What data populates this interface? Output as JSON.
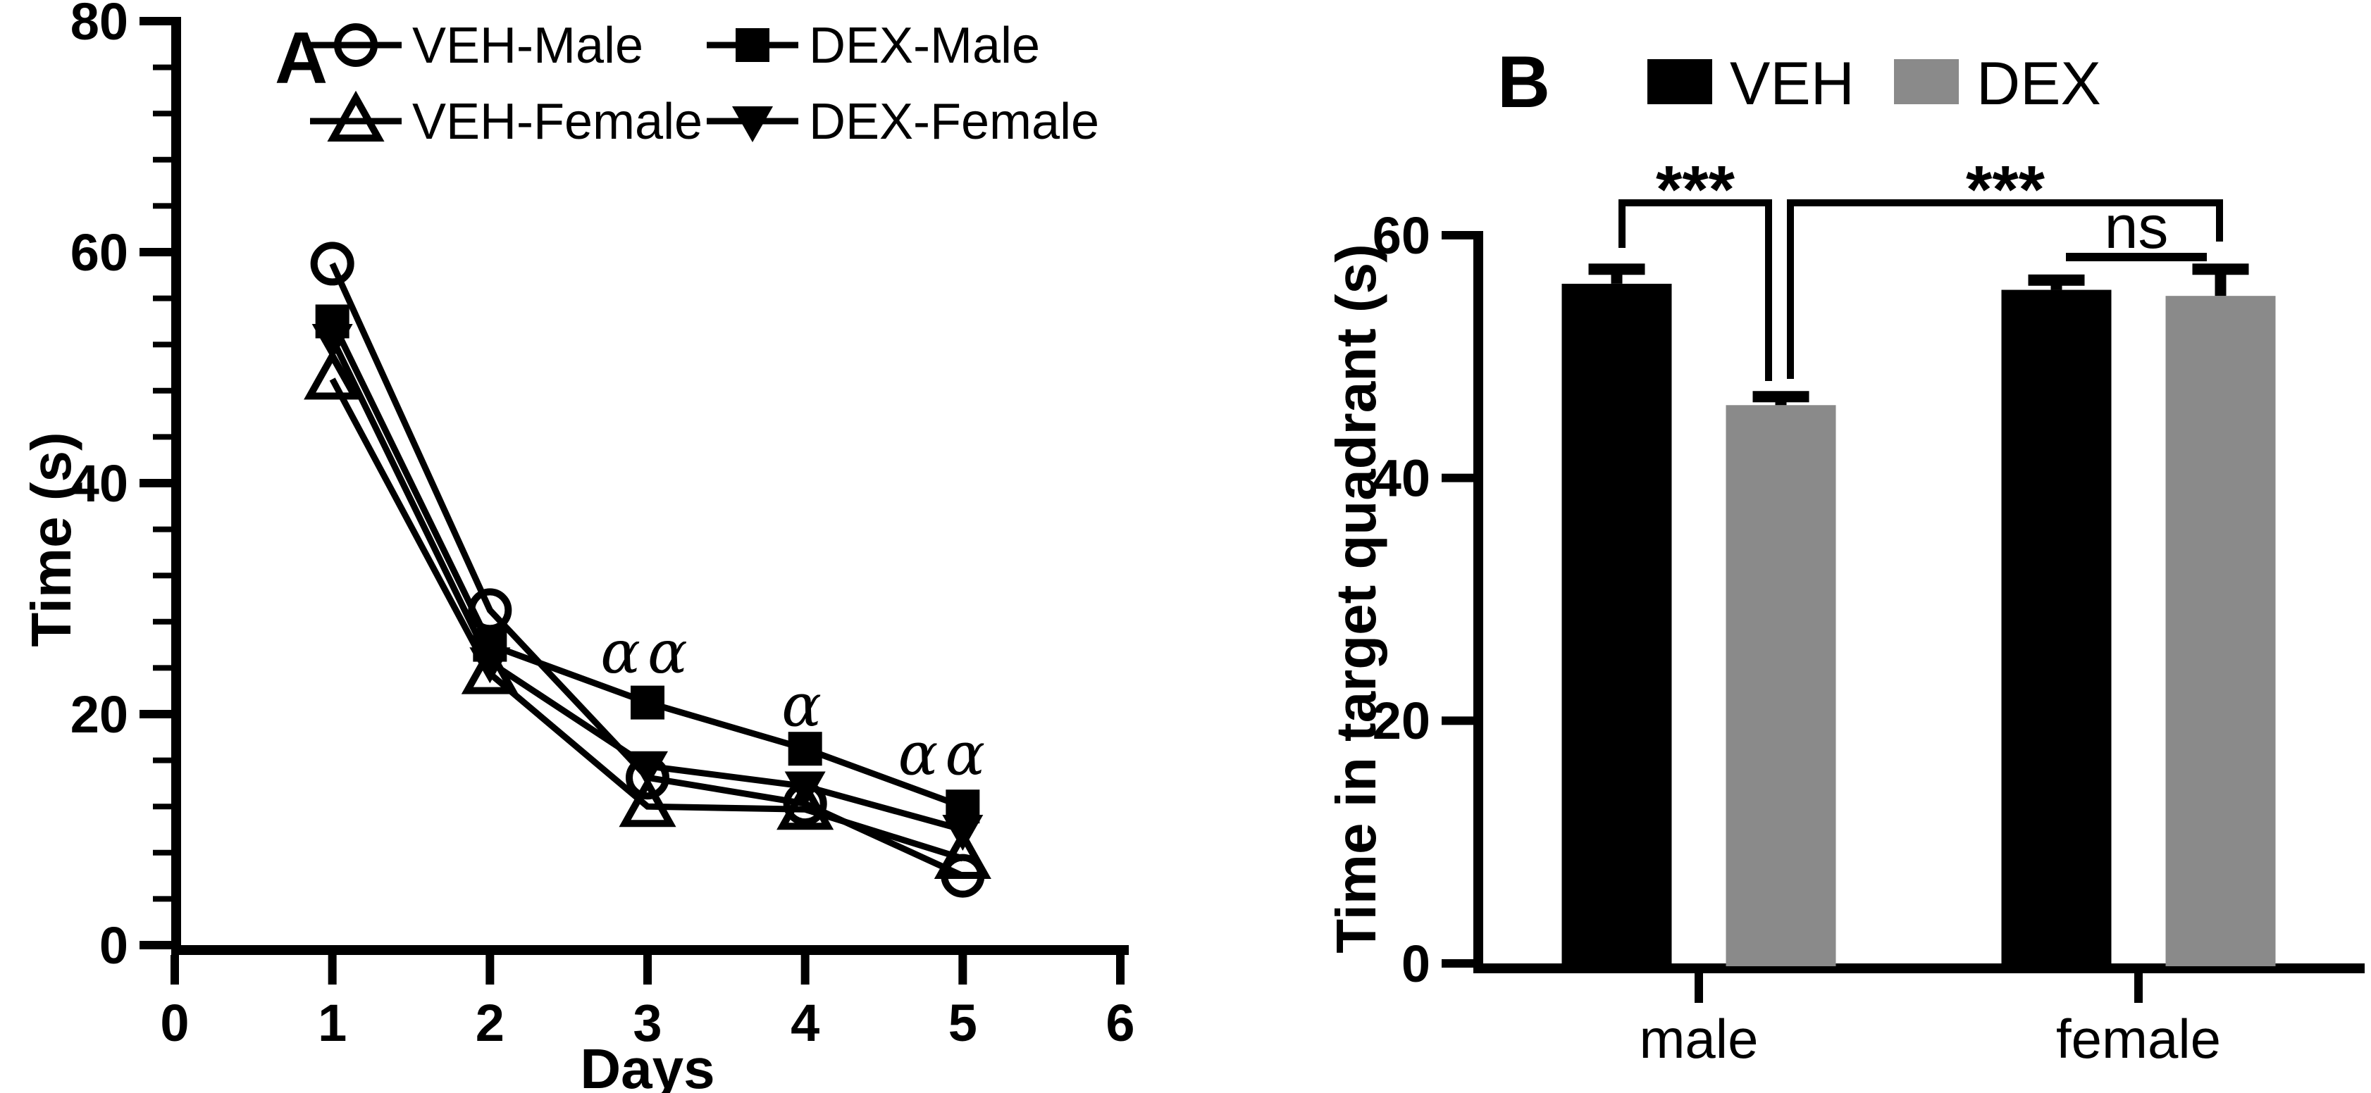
{
  "figure": {
    "background": "#ffffff",
    "ink_color": "#000000",
    "panel_labels": [
      "A",
      "B"
    ]
  },
  "chart_data": [
    {
      "panel_label": "A",
      "type": "line",
      "title": "",
      "xlabel": "Days",
      "ylabel": "Time (s)",
      "xlim": [
        0,
        6
      ],
      "ylim": [
        0,
        80
      ],
      "x_ticks": [
        0,
        1,
        2,
        3,
        4,
        5,
        6
      ],
      "y_ticks": [
        0,
        20,
        40,
        60,
        80
      ],
      "y_minor_step": 4,
      "grid": false,
      "legend_position": "top",
      "x": [
        1,
        2,
        3,
        4,
        5
      ],
      "series": [
        {
          "name": "VEH-Male",
          "marker": "open-circle",
          "color": "#000000",
          "values": [
            59,
            29,
            14.5,
            12.25,
            6
          ]
        },
        {
          "name": "DEX-Male",
          "marker": "filled-square",
          "color": "#000000",
          "values": [
            54,
            26,
            21,
            17,
            12
          ]
        },
        {
          "name": "VEH-Female",
          "marker": "open-triangle-up",
          "color": "#000000",
          "values": [
            49,
            23.5,
            12,
            11.75,
            7.5
          ]
        },
        {
          "name": "DEX-Female",
          "marker": "filled-triangle-down",
          "color": "#000000",
          "values": [
            52.5,
            24.5,
            15.5,
            13.75,
            10
          ]
        }
      ],
      "annotations": [
        {
          "text": "αα",
          "x": 3,
          "value": 23.6
        },
        {
          "text": "α",
          "x": 4,
          "value": 19.0
        },
        {
          "text": "αα",
          "x": 5,
          "value": 14.8
        }
      ]
    },
    {
      "panel_label": "B",
      "type": "bar",
      "title": "",
      "xlabel": "",
      "ylabel": "Time in target quadrant (s)",
      "ylim": [
        0,
        60
      ],
      "y_ticks": [
        0,
        20,
        40,
        60
      ],
      "grid": false,
      "legend_position": "top",
      "categories": [
        "male",
        "female"
      ],
      "series": [
        {
          "name": "VEH",
          "color": "#000000",
          "values": [
            56,
            55.5
          ],
          "errors": [
            1.2,
            0.8
          ]
        },
        {
          "name": "DEX",
          "color": "#8a8a8a",
          "values": [
            46,
            55
          ],
          "errors": [
            0.7,
            2.2
          ]
        }
      ],
      "significance": [
        {
          "label": "***",
          "style": "bracket",
          "compares": "male-VEH vs male-DEX"
        },
        {
          "label": "***",
          "style": "bracket",
          "compares": "male-DEX vs female-DEX"
        },
        {
          "label": "ns",
          "style": "underline",
          "compares": "female-VEH vs female-DEX"
        }
      ]
    }
  ]
}
